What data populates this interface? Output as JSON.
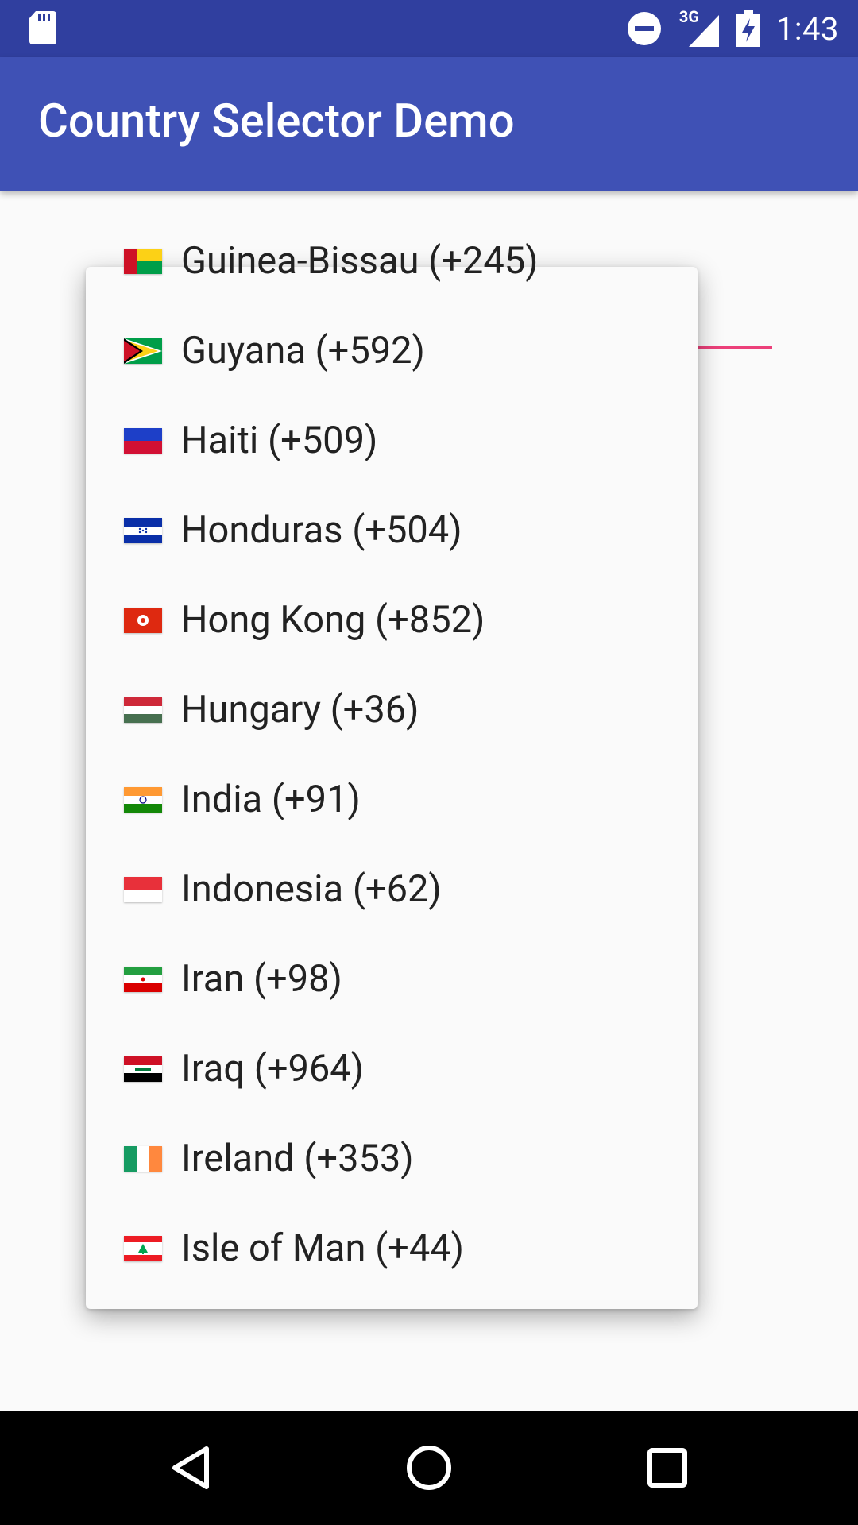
{
  "status_bar": {
    "time": "1:43",
    "network": "3G",
    "icons": [
      "sd-card-icon",
      "do-not-disturb-icon",
      "signal-icon",
      "battery-charging-icon"
    ]
  },
  "app_bar": {
    "title": "Country Selector Demo"
  },
  "colors": {
    "status_bar": "#303F9F",
    "app_bar": "#3F51B5",
    "accent": "#E91E63",
    "background": "#FAFAFA"
  },
  "country_list": {
    "items": [
      {
        "label": "Guinea-Bissau (+245)",
        "flag": "guinea-bissau-flag-icon"
      },
      {
        "label": "Guyana (+592)",
        "flag": "guyana-flag-icon"
      },
      {
        "label": "Haiti (+509)",
        "flag": "haiti-flag-icon"
      },
      {
        "label": "Honduras (+504)",
        "flag": "honduras-flag-icon"
      },
      {
        "label": "Hong Kong (+852)",
        "flag": "hong-kong-flag-icon"
      },
      {
        "label": "Hungary (+36)",
        "flag": "hungary-flag-icon"
      },
      {
        "label": "India (+91)",
        "flag": "india-flag-icon"
      },
      {
        "label": "Indonesia (+62)",
        "flag": "indonesia-flag-icon"
      },
      {
        "label": "Iran (+98)",
        "flag": "iran-flag-icon"
      },
      {
        "label": "Iraq (+964)",
        "flag": "iraq-flag-icon"
      },
      {
        "label": "Ireland (+353)",
        "flag": "ireland-flag-icon"
      },
      {
        "label": "Isle of Man (+44)",
        "flag": "isle-of-man-flag-icon"
      }
    ]
  },
  "nav_bar": {
    "buttons": [
      "back-icon",
      "home-icon",
      "recents-icon"
    ]
  }
}
